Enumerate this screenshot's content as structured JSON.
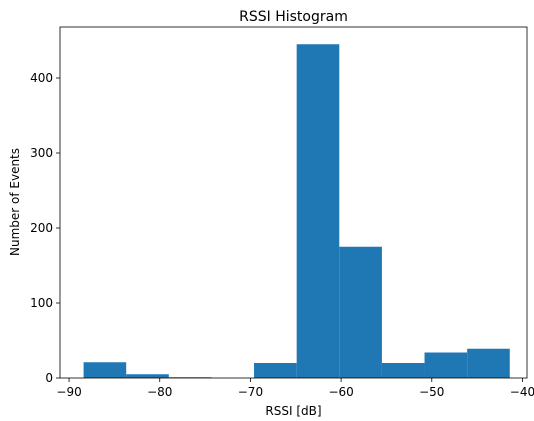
{
  "chart_data": {
    "type": "histogram",
    "title": "RSSI Histogram",
    "xlabel": "RSSI [dB]",
    "ylabel": "Number of Events",
    "xlim": [
      -91,
      -39.5
    ],
    "ylim": [
      0,
      468
    ],
    "xticks": [
      -90,
      -80,
      -70,
      -60,
      -50,
      -40
    ],
    "xtick_labels": [
      "−90",
      "−80",
      "−70",
      "−60",
      "−50",
      "−40"
    ],
    "yticks": [
      0,
      100,
      200,
      300,
      400
    ],
    "ytick_labels": [
      "0",
      "100",
      "200",
      "300",
      "400"
    ],
    "bin_edges": [
      -88.4,
      -83.7,
      -79.0,
      -74.3,
      -69.6,
      -64.9,
      -60.2,
      -55.5,
      -50.8,
      -46.1,
      -41.4
    ],
    "counts": [
      21,
      5,
      1,
      0,
      20,
      445,
      175,
      20,
      34,
      39
    ],
    "bar_color": "#1f77b4",
    "grid": false,
    "legend": "none"
  }
}
